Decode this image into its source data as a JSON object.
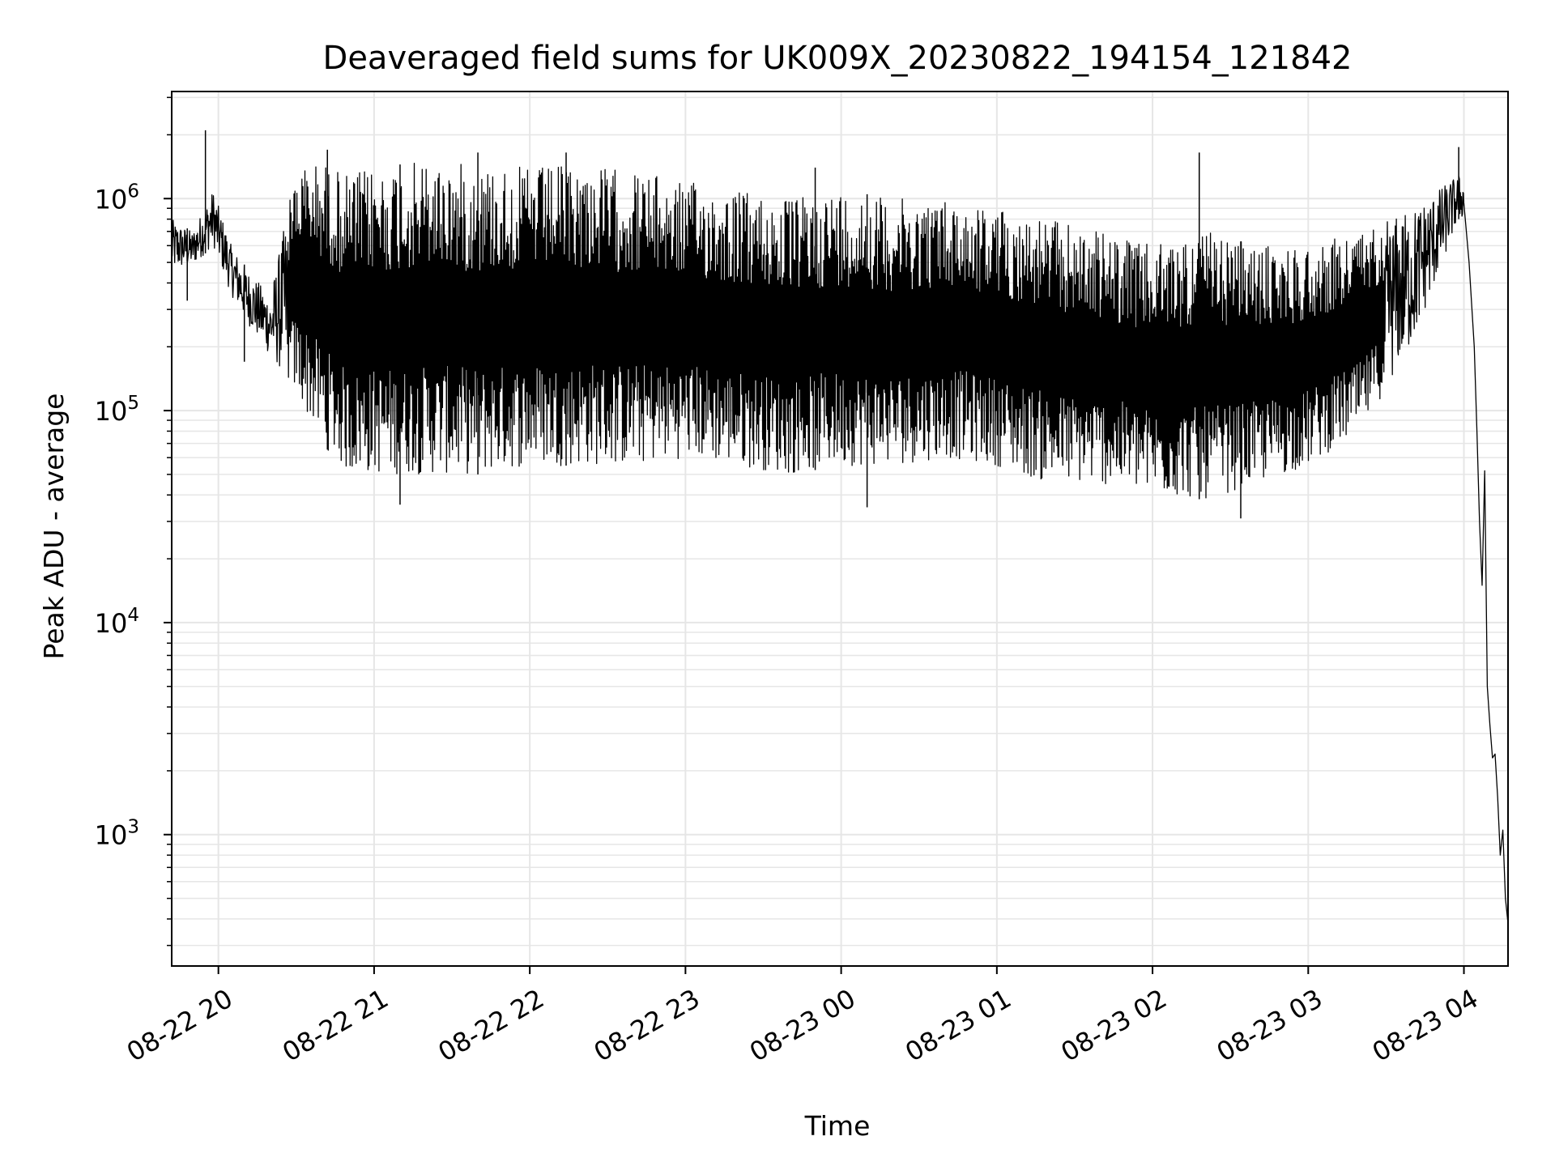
{
  "chart_data": {
    "type": "line",
    "title": "Deaveraged field sums for UK009X_20230822_194154_121842",
    "xlabel": "Time",
    "ylabel": "Peak ADU - average",
    "yscale": "log",
    "grid": true,
    "line_color": "#000000",
    "grid_color": "#e6e6e6",
    "xlim": [
      "2023-08-22 19:42",
      "2023-08-23 04:17"
    ],
    "ylim": [
      240,
      3200000
    ],
    "x_ticks": [
      {
        "value": "2023-08-22 20:00",
        "label": "08-22 20"
      },
      {
        "value": "2023-08-22 21:00",
        "label": "08-22 21"
      },
      {
        "value": "2023-08-22 22:00",
        "label": "08-22 22"
      },
      {
        "value": "2023-08-22 23:00",
        "label": "08-22 23"
      },
      {
        "value": "2023-08-23 00:00",
        "label": "08-23 00"
      },
      {
        "value": "2023-08-23 01:00",
        "label": "08-23 01"
      },
      {
        "value": "2023-08-23 02:00",
        "label": "08-23 02"
      },
      {
        "value": "2023-08-23 03:00",
        "label": "08-23 03"
      },
      {
        "value": "2023-08-23 04:00",
        "label": "08-23 04"
      }
    ],
    "y_ticks": [
      {
        "value": 1000,
        "base": "10",
        "exp": "3"
      },
      {
        "value": 10000,
        "base": "10",
        "exp": "4"
      },
      {
        "value": 100000,
        "base": "10",
        "exp": "5"
      },
      {
        "value": 1000000,
        "base": "10",
        "exp": "6"
      }
    ],
    "envelope": [
      {
        "t": "2023-08-22 19:42",
        "low": 450000,
        "high": 800000
      },
      {
        "t": "2023-08-22 19:50",
        "low": 480000,
        "high": 700000
      },
      {
        "t": "2023-08-22 19:58",
        "low": 600000,
        "high": 1100000
      },
      {
        "t": "2023-08-22 20:05",
        "low": 350000,
        "high": 600000
      },
      {
        "t": "2023-08-22 20:12",
        "low": 250000,
        "high": 450000
      },
      {
        "t": "2023-08-22 20:20",
        "low": 180000,
        "high": 350000
      },
      {
        "t": "2023-08-22 20:30",
        "low": 120000,
        "high": 1400000
      },
      {
        "t": "2023-08-22 20:40",
        "low": 70000,
        "high": 1500000
      },
      {
        "t": "2023-08-22 20:50",
        "low": 50000,
        "high": 1300000
      },
      {
        "t": "2023-08-22 21:00",
        "low": 50000,
        "high": 1400000
      },
      {
        "t": "2023-08-22 21:20",
        "low": 50000,
        "high": 1500000
      },
      {
        "t": "2023-08-22 21:40",
        "low": 50000,
        "high": 1450000
      },
      {
        "t": "2023-08-22 22:00",
        "low": 55000,
        "high": 1400000
      },
      {
        "t": "2023-08-22 22:20",
        "low": 55000,
        "high": 1450000
      },
      {
        "t": "2023-08-22 22:40",
        "low": 55000,
        "high": 1350000
      },
      {
        "t": "2023-08-22 23:00",
        "low": 60000,
        "high": 1200000
      },
      {
        "t": "2023-08-22 23:20",
        "low": 55000,
        "high": 1100000
      },
      {
        "t": "2023-08-22 23:40",
        "low": 50000,
        "high": 1000000
      },
      {
        "t": "2023-08-23 00:00",
        "low": 55000,
        "high": 1100000
      },
      {
        "t": "2023-08-23 00:20",
        "low": 55000,
        "high": 1000000
      },
      {
        "t": "2023-08-23 00:40",
        "low": 60000,
        "high": 1000000
      },
      {
        "t": "2023-08-23 01:00",
        "low": 55000,
        "high": 900000
      },
      {
        "t": "2023-08-23 01:20",
        "low": 45000,
        "high": 800000
      },
      {
        "t": "2023-08-23 01:40",
        "low": 45000,
        "high": 700000
      },
      {
        "t": "2023-08-23 02:00",
        "low": 40000,
        "high": 600000
      },
      {
        "t": "2023-08-23 02:20",
        "low": 38000,
        "high": 700000
      },
      {
        "t": "2023-08-23 02:40",
        "low": 45000,
        "high": 600000
      },
      {
        "t": "2023-08-23 03:00",
        "low": 55000,
        "high": 600000
      },
      {
        "t": "2023-08-23 03:20",
        "low": 80000,
        "high": 700000
      },
      {
        "t": "2023-08-23 03:40",
        "low": 200000,
        "high": 900000
      },
      {
        "t": "2023-08-23 03:58",
        "low": 800000,
        "high": 1300000
      },
      {
        "t": "2023-08-23 04:00",
        "low": 800000,
        "high": 1200000
      }
    ],
    "spikes": [
      {
        "t": "2023-08-22 19:55",
        "y": 2100000
      },
      {
        "t": "2023-08-22 19:48",
        "y": 330000
      },
      {
        "t": "2023-08-22 20:10",
        "y": 170000
      },
      {
        "t": "2023-08-22 20:42",
        "y": 1700000
      },
      {
        "t": "2023-08-22 21:10",
        "y": 36000
      },
      {
        "t": "2023-08-22 21:40",
        "y": 1650000
      },
      {
        "t": "2023-08-22 22:14",
        "y": 1650000
      },
      {
        "t": "2023-08-22 23:50",
        "y": 1400000
      },
      {
        "t": "2023-08-23 00:10",
        "y": 35000
      },
      {
        "t": "2023-08-23 02:18",
        "y": 1650000
      },
      {
        "t": "2023-08-23 02:34",
        "y": 31000
      },
      {
        "t": "2023-08-23 03:58",
        "y": 1750000
      }
    ],
    "decay": [
      {
        "t": "2023-08-23 04:00",
        "y": 950000
      },
      {
        "t": "2023-08-23 04:02",
        "y": 500000
      },
      {
        "t": "2023-08-23 04:04",
        "y": 200000
      },
      {
        "t": "2023-08-23 04:05",
        "y": 80000
      },
      {
        "t": "2023-08-23 04:06",
        "y": 30000
      },
      {
        "t": "2023-08-23 04:07",
        "y": 15000
      },
      {
        "t": "2023-08-23 04:08",
        "y": 52000
      },
      {
        "t": "2023-08-23 04:09",
        "y": 5000
      },
      {
        "t": "2023-08-23 04:10",
        "y": 3300
      },
      {
        "t": "2023-08-23 04:11",
        "y": 2300
      },
      {
        "t": "2023-08-23 04:12",
        "y": 2400
      },
      {
        "t": "2023-08-23 04:13",
        "y": 1500
      },
      {
        "t": "2023-08-23 04:14",
        "y": 800
      },
      {
        "t": "2023-08-23 04:15",
        "y": 1050
      },
      {
        "t": "2023-08-23 04:16",
        "y": 500
      },
      {
        "t": "2023-08-23 04:17",
        "y": 380
      }
    ]
  }
}
